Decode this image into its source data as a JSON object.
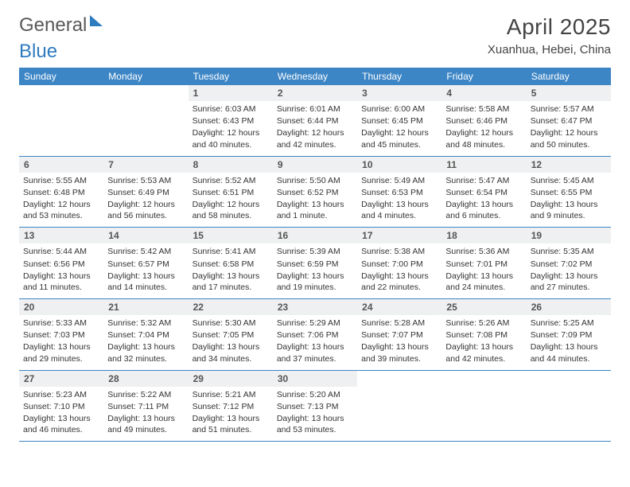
{
  "brand": {
    "part1": "General",
    "part2": "Blue"
  },
  "title": "April 2025",
  "location": "Xuanhua, Hebei, China",
  "weekdays": [
    "Sunday",
    "Monday",
    "Tuesday",
    "Wednesday",
    "Thursday",
    "Friday",
    "Saturday"
  ],
  "colors": {
    "header_bg": "#3d86c6",
    "header_text": "#ffffff",
    "daynum_bg": "#eef0f1",
    "row_border": "#3d86c6",
    "brand_gray": "#58595b",
    "brand_blue": "#2f7bbf",
    "body_text": "#333333",
    "title_text": "#444444",
    "page_bg": "#ffffff"
  },
  "typography": {
    "month_title_pt": 28,
    "location_pt": 15,
    "weekday_pt": 12,
    "daynum_pt": 12,
    "body_pt": 10.5,
    "logo_pt": 24
  },
  "grid": {
    "columns": 7,
    "rows": 5,
    "first_day_column_index": 2,
    "days_in_month": 30
  },
  "days": [
    {
      "n": 1,
      "sunrise": "6:03 AM",
      "sunset": "6:43 PM",
      "daylight": "12 hours and 40 minutes."
    },
    {
      "n": 2,
      "sunrise": "6:01 AM",
      "sunset": "6:44 PM",
      "daylight": "12 hours and 42 minutes."
    },
    {
      "n": 3,
      "sunrise": "6:00 AM",
      "sunset": "6:45 PM",
      "daylight": "12 hours and 45 minutes."
    },
    {
      "n": 4,
      "sunrise": "5:58 AM",
      "sunset": "6:46 PM",
      "daylight": "12 hours and 48 minutes."
    },
    {
      "n": 5,
      "sunrise": "5:57 AM",
      "sunset": "6:47 PM",
      "daylight": "12 hours and 50 minutes."
    },
    {
      "n": 6,
      "sunrise": "5:55 AM",
      "sunset": "6:48 PM",
      "daylight": "12 hours and 53 minutes."
    },
    {
      "n": 7,
      "sunrise": "5:53 AM",
      "sunset": "6:49 PM",
      "daylight": "12 hours and 56 minutes."
    },
    {
      "n": 8,
      "sunrise": "5:52 AM",
      "sunset": "6:51 PM",
      "daylight": "12 hours and 58 minutes."
    },
    {
      "n": 9,
      "sunrise": "5:50 AM",
      "sunset": "6:52 PM",
      "daylight": "13 hours and 1 minute."
    },
    {
      "n": 10,
      "sunrise": "5:49 AM",
      "sunset": "6:53 PM",
      "daylight": "13 hours and 4 minutes."
    },
    {
      "n": 11,
      "sunrise": "5:47 AM",
      "sunset": "6:54 PM",
      "daylight": "13 hours and 6 minutes."
    },
    {
      "n": 12,
      "sunrise": "5:45 AM",
      "sunset": "6:55 PM",
      "daylight": "13 hours and 9 minutes."
    },
    {
      "n": 13,
      "sunrise": "5:44 AM",
      "sunset": "6:56 PM",
      "daylight": "13 hours and 11 minutes."
    },
    {
      "n": 14,
      "sunrise": "5:42 AM",
      "sunset": "6:57 PM",
      "daylight": "13 hours and 14 minutes."
    },
    {
      "n": 15,
      "sunrise": "5:41 AM",
      "sunset": "6:58 PM",
      "daylight": "13 hours and 17 minutes."
    },
    {
      "n": 16,
      "sunrise": "5:39 AM",
      "sunset": "6:59 PM",
      "daylight": "13 hours and 19 minutes."
    },
    {
      "n": 17,
      "sunrise": "5:38 AM",
      "sunset": "7:00 PM",
      "daylight": "13 hours and 22 minutes."
    },
    {
      "n": 18,
      "sunrise": "5:36 AM",
      "sunset": "7:01 PM",
      "daylight": "13 hours and 24 minutes."
    },
    {
      "n": 19,
      "sunrise": "5:35 AM",
      "sunset": "7:02 PM",
      "daylight": "13 hours and 27 minutes."
    },
    {
      "n": 20,
      "sunrise": "5:33 AM",
      "sunset": "7:03 PM",
      "daylight": "13 hours and 29 minutes."
    },
    {
      "n": 21,
      "sunrise": "5:32 AM",
      "sunset": "7:04 PM",
      "daylight": "13 hours and 32 minutes."
    },
    {
      "n": 22,
      "sunrise": "5:30 AM",
      "sunset": "7:05 PM",
      "daylight": "13 hours and 34 minutes."
    },
    {
      "n": 23,
      "sunrise": "5:29 AM",
      "sunset": "7:06 PM",
      "daylight": "13 hours and 37 minutes."
    },
    {
      "n": 24,
      "sunrise": "5:28 AM",
      "sunset": "7:07 PM",
      "daylight": "13 hours and 39 minutes."
    },
    {
      "n": 25,
      "sunrise": "5:26 AM",
      "sunset": "7:08 PM",
      "daylight": "13 hours and 42 minutes."
    },
    {
      "n": 26,
      "sunrise": "5:25 AM",
      "sunset": "7:09 PM",
      "daylight": "13 hours and 44 minutes."
    },
    {
      "n": 27,
      "sunrise": "5:23 AM",
      "sunset": "7:10 PM",
      "daylight": "13 hours and 46 minutes."
    },
    {
      "n": 28,
      "sunrise": "5:22 AM",
      "sunset": "7:11 PM",
      "daylight": "13 hours and 49 minutes."
    },
    {
      "n": 29,
      "sunrise": "5:21 AM",
      "sunset": "7:12 PM",
      "daylight": "13 hours and 51 minutes."
    },
    {
      "n": 30,
      "sunrise": "5:20 AM",
      "sunset": "7:13 PM",
      "daylight": "13 hours and 53 minutes."
    }
  ],
  "labels": {
    "sunrise_prefix": "Sunrise: ",
    "sunset_prefix": "Sunset: ",
    "daylight_prefix": "Daylight: "
  }
}
